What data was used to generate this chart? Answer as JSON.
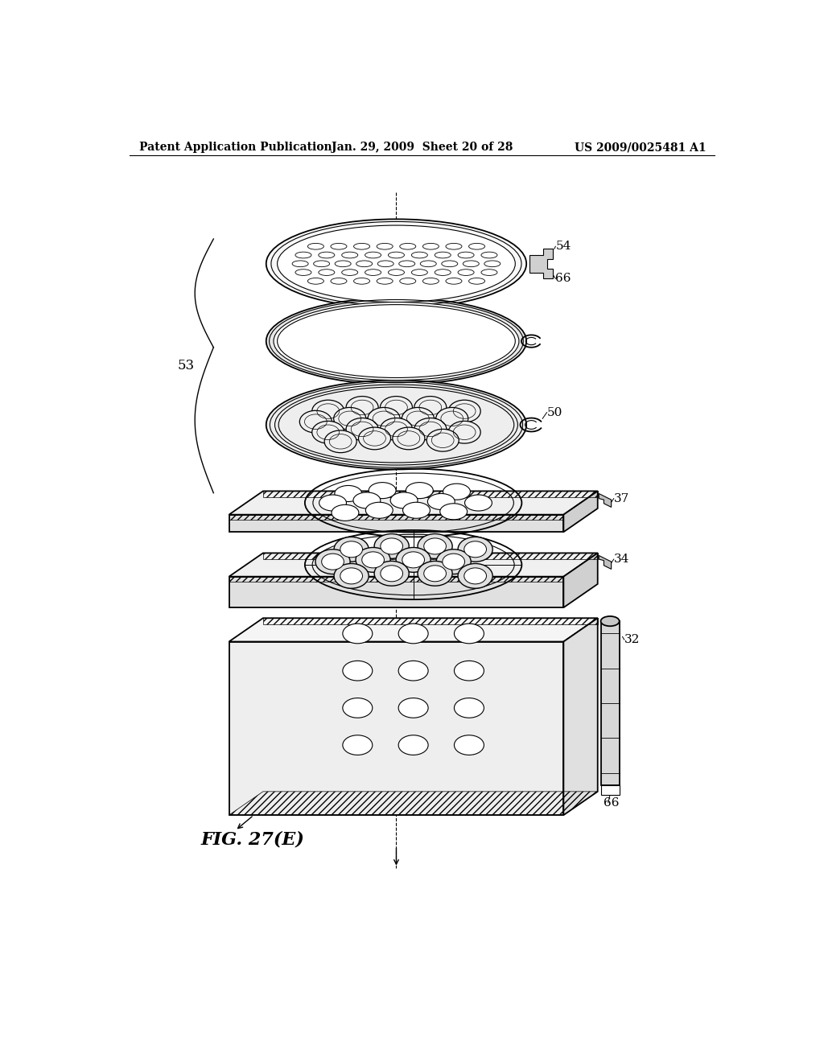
{
  "background_color": "#ffffff",
  "header_left": "Patent Application Publication",
  "header_center": "Jan. 29, 2009  Sheet 20 of 28",
  "header_right": "US 2009/0025481 A1",
  "figure_label": "FIG. 27(E)"
}
